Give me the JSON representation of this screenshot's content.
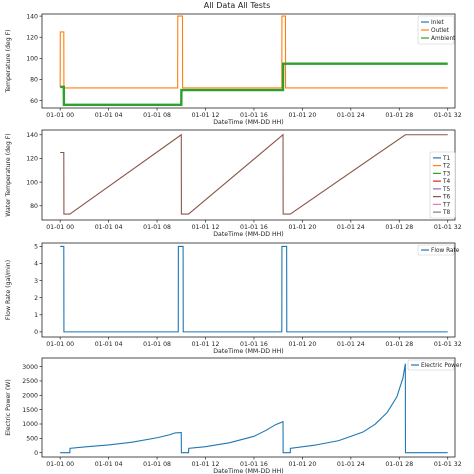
{
  "figure_title": "All Data All Tests",
  "chart_data": [
    {
      "type": "line",
      "xlabel": "DateTime (MM-DD HH)",
      "ylabel": "Temperature (deg F)",
      "xlim": [
        -1.5,
        32.6
      ],
      "ylim": [
        53,
        142
      ],
      "x_ticks": [
        0,
        4,
        8,
        12,
        16,
        20,
        24,
        28,
        32
      ],
      "x_tick_labels": [
        "01-01 00",
        "01-01 04",
        "01-01 08",
        "01-01 12",
        "01-01 16",
        "01-01 20",
        "01-01 24",
        "01-01 28",
        "01-01 32"
      ],
      "y_ticks": [
        60,
        80,
        100,
        120,
        140
      ],
      "legend_position": "top-right",
      "series": [
        {
          "name": "Inlet",
          "color": "#1f77b4",
          "x": [],
          "y": []
        },
        {
          "name": "Outlet",
          "color": "#ff7f0e",
          "x": [
            0,
            0.01,
            0.3,
            0.31,
            9.7,
            9.71,
            10.1,
            10.11,
            18.3,
            18.31,
            18.6,
            18.61,
            32.0
          ],
          "y": [
            73,
            125,
            125,
            72,
            72,
            140,
            140,
            72,
            72,
            140,
            140,
            72,
            72
          ]
        },
        {
          "name": "Ambient",
          "color": "#2ca02c",
          "x": [
            0,
            0.3,
            0.31,
            10.0,
            10.01,
            18.4,
            18.41,
            32.0
          ],
          "y": [
            73,
            73,
            56,
            56,
            70,
            70,
            95,
            95
          ]
        }
      ]
    },
    {
      "type": "line",
      "xlabel": "DateTime (MM-DD HH)",
      "ylabel": "Water Temperature (deg F)",
      "xlim": [
        -1.5,
        32.6
      ],
      "ylim": [
        68,
        144
      ],
      "x_ticks": [
        0,
        4,
        8,
        12,
        16,
        20,
        24,
        28,
        32
      ],
      "x_tick_labels": [
        "01-01 00",
        "01-01 04",
        "01-01 08",
        "01-01 12",
        "01-01 16",
        "01-01 20",
        "01-01 24",
        "01-01 28",
        "01-01 32"
      ],
      "y_ticks": [
        80,
        100,
        120,
        140
      ],
      "legend_position": "right",
      "series": [
        {
          "name": "T1",
          "color": "#1f77b4",
          "x": [],
          "y": []
        },
        {
          "name": "T2",
          "color": "#ff7f0e",
          "x": [],
          "y": []
        },
        {
          "name": "T3",
          "color": "#2ca02c",
          "x": [],
          "y": []
        },
        {
          "name": "T4",
          "color": "#d62728",
          "x": [],
          "y": []
        },
        {
          "name": "T5",
          "color": "#9467bd",
          "x": [],
          "y": []
        },
        {
          "name": "T6",
          "color": "#8c564b",
          "x": [
            0,
            0.3,
            0.31,
            0.8,
            10.0,
            10.01,
            10.6,
            18.4,
            18.41,
            19.0,
            28.5,
            32.0
          ],
          "y": [
            125,
            125,
            73,
            73,
            140,
            73,
            73,
            140,
            73,
            73,
            140,
            140
          ]
        },
        {
          "name": "T7",
          "color": "#e377c2",
          "x": [],
          "y": []
        },
        {
          "name": "T8",
          "color": "#7f7f7f",
          "x": [],
          "y": []
        }
      ]
    },
    {
      "type": "line",
      "xlabel": "DateTime (MM-DD HH)",
      "ylabel": "Flow Rate (gal/min)",
      "xlim": [
        -1.5,
        32.6
      ],
      "ylim": [
        -0.3,
        5.2
      ],
      "x_ticks": [
        0,
        4,
        8,
        12,
        16,
        20,
        24,
        28,
        32
      ],
      "x_tick_labels": [
        "01-01 00",
        "01-01 04",
        "01-01 08",
        "01-01 12",
        "01-01 16",
        "01-01 20",
        "01-01 24",
        "01-01 28",
        "01-01 32"
      ],
      "y_ticks": [
        0,
        1,
        2,
        3,
        4,
        5
      ],
      "legend_position": "top-right",
      "series": [
        {
          "name": "Flow Rate",
          "color": "#1f77b4",
          "x": [
            0,
            0.3,
            0.31,
            9.75,
            9.76,
            10.15,
            10.16,
            18.3,
            18.31,
            18.7,
            18.71,
            32.0
          ],
          "y": [
            5,
            5,
            0,
            0,
            5,
            5,
            0,
            0,
            5,
            5,
            0,
            0
          ]
        }
      ]
    },
    {
      "type": "line",
      "xlabel": "DateTime (MM-DD HH)",
      "ylabel": "Electric Power (W)",
      "xlim": [
        -1.5,
        32.6
      ],
      "ylim": [
        -150,
        3300
      ],
      "x_ticks": [
        0,
        4,
        8,
        12,
        16,
        20,
        24,
        28,
        32
      ],
      "x_tick_labels": [
        "01-01 00",
        "01-01 04",
        "01-01 08",
        "01-01 12",
        "01-01 16",
        "01-01 20",
        "01-01 24",
        "01-01 28",
        "01-01 32"
      ],
      "y_ticks": [
        0,
        500,
        1000,
        1500,
        2000,
        2500,
        3000
      ],
      "legend_position": "top-right",
      "series": [
        {
          "name": "Electric Power",
          "color": "#1f77b4",
          "x": [
            0,
            0.3,
            0.8,
            0.81,
            2,
            4,
            6,
            8,
            9,
            9.5,
            10.0,
            10.01,
            10.6,
            10.61,
            12,
            14,
            16,
            17,
            17.8,
            18.4,
            18.41,
            19.0,
            19.01,
            21,
            23,
            25,
            26,
            27,
            27.8,
            28.3,
            28.5,
            28.51,
            32.0
          ],
          "y": [
            0,
            0,
            0,
            150,
            200,
            270,
            370,
            520,
            620,
            690,
            700,
            0,
            0,
            150,
            210,
            350,
            570,
            780,
            980,
            1080,
            0,
            0,
            150,
            260,
            420,
            720,
            990,
            1400,
            1950,
            2600,
            3100,
            0,
            0
          ]
        }
      ]
    }
  ]
}
